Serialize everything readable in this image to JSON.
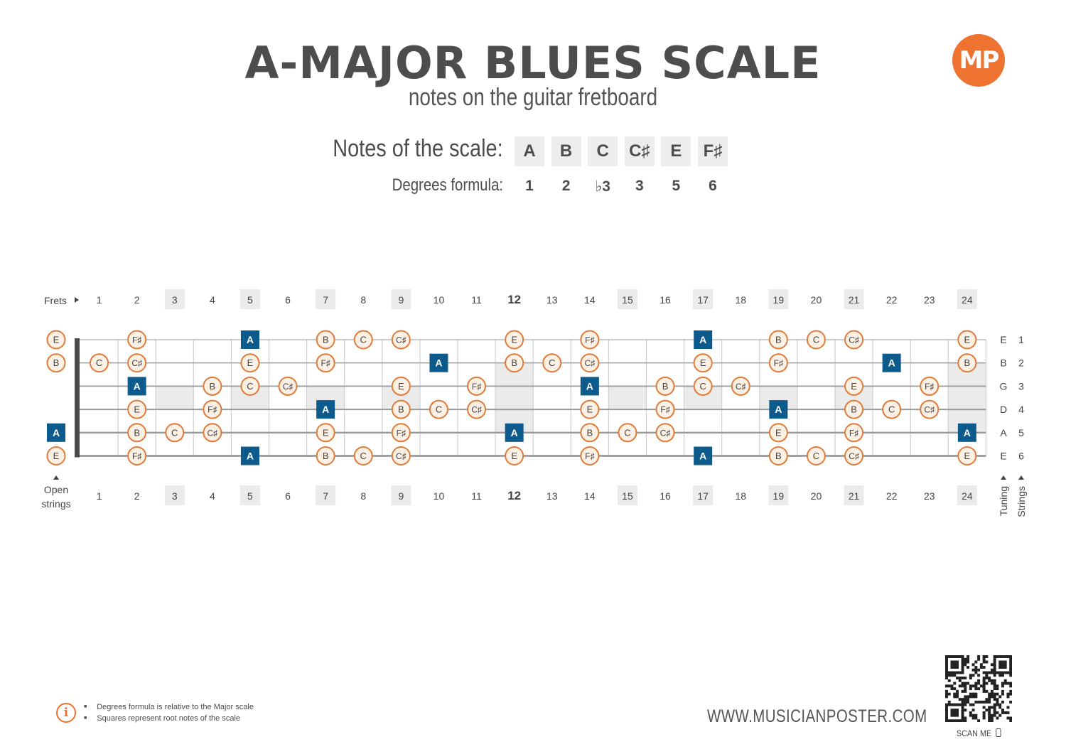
{
  "header": {
    "title": "A-MAJOR BLUES SCALE",
    "subtitle": "notes on the guitar fretboard",
    "logo_text": "MP"
  },
  "scale": {
    "notes_label": "Notes of the scale:",
    "degrees_label": "Degrees formula:",
    "notes": [
      "A",
      "B",
      "C",
      "C♯",
      "E",
      "F♯"
    ],
    "degrees": [
      "1",
      "2",
      "♭3",
      "3",
      "5",
      "6"
    ]
  },
  "fretboard": {
    "frets_label": "Frets",
    "open_strings_label": "Open strings",
    "tuning_label": "Tuning",
    "strings_label": "Strings",
    "fret_numbers": [
      "1",
      "2",
      "3",
      "4",
      "5",
      "6",
      "7",
      "8",
      "9",
      "10",
      "11",
      "12",
      "13",
      "14",
      "15",
      "16",
      "17",
      "18",
      "19",
      "20",
      "21",
      "22",
      "23",
      "24"
    ],
    "highlighted_frets": [
      3,
      5,
      7,
      9,
      15,
      17,
      19,
      21,
      24
    ],
    "bold_fret": 12,
    "inlay_frets": [
      3,
      5,
      7,
      9,
      12,
      15,
      17,
      19,
      21,
      24
    ],
    "tuning": [
      "E",
      "B",
      "G",
      "D",
      "A",
      "E"
    ],
    "string_numbers": [
      "1",
      "2",
      "3",
      "4",
      "5",
      "6"
    ],
    "root_note": "A",
    "rows": [
      {
        "string": 1,
        "notes": [
          [
            0,
            "E"
          ],
          [
            2,
            "F♯"
          ],
          [
            5,
            "A"
          ],
          [
            7,
            "B"
          ],
          [
            8,
            "C"
          ],
          [
            9,
            "C♯"
          ],
          [
            12,
            "E"
          ],
          [
            14,
            "F♯"
          ],
          [
            17,
            "A"
          ],
          [
            19,
            "B"
          ],
          [
            20,
            "C"
          ],
          [
            21,
            "C♯"
          ],
          [
            24,
            "E"
          ]
        ]
      },
      {
        "string": 2,
        "notes": [
          [
            0,
            "B"
          ],
          [
            1,
            "C"
          ],
          [
            2,
            "C♯"
          ],
          [
            5,
            "E"
          ],
          [
            7,
            "F♯"
          ],
          [
            10,
            "A"
          ],
          [
            12,
            "B"
          ],
          [
            13,
            "C"
          ],
          [
            14,
            "C♯"
          ],
          [
            17,
            "E"
          ],
          [
            19,
            "F♯"
          ],
          [
            22,
            "A"
          ],
          [
            24,
            "B"
          ]
        ]
      },
      {
        "string": 3,
        "notes": [
          [
            2,
            "A"
          ],
          [
            4,
            "B"
          ],
          [
            5,
            "C"
          ],
          [
            6,
            "C♯"
          ],
          [
            9,
            "E"
          ],
          [
            11,
            "F♯"
          ],
          [
            14,
            "A"
          ],
          [
            16,
            "B"
          ],
          [
            17,
            "C"
          ],
          [
            18,
            "C♯"
          ],
          [
            21,
            "E"
          ],
          [
            23,
            "F♯"
          ]
        ]
      },
      {
        "string": 4,
        "notes": [
          [
            2,
            "E"
          ],
          [
            4,
            "F♯"
          ],
          [
            7,
            "A"
          ],
          [
            9,
            "B"
          ],
          [
            10,
            "C"
          ],
          [
            11,
            "C♯"
          ],
          [
            14,
            "E"
          ],
          [
            16,
            "F♯"
          ],
          [
            19,
            "A"
          ],
          [
            21,
            "B"
          ],
          [
            22,
            "C"
          ],
          [
            23,
            "C♯"
          ]
        ]
      },
      {
        "string": 5,
        "notes": [
          [
            0,
            "A"
          ],
          [
            2,
            "B"
          ],
          [
            3,
            "C"
          ],
          [
            4,
            "C♯"
          ],
          [
            7,
            "E"
          ],
          [
            9,
            "F♯"
          ],
          [
            12,
            "A"
          ],
          [
            14,
            "B"
          ],
          [
            15,
            "C"
          ],
          [
            16,
            "C♯"
          ],
          [
            19,
            "E"
          ],
          [
            21,
            "F♯"
          ],
          [
            24,
            "A"
          ]
        ]
      },
      {
        "string": 6,
        "notes": [
          [
            0,
            "E"
          ],
          [
            2,
            "F♯"
          ],
          [
            5,
            "A"
          ],
          [
            7,
            "B"
          ],
          [
            8,
            "C"
          ],
          [
            9,
            "C♯"
          ],
          [
            12,
            "E"
          ],
          [
            14,
            "F♯"
          ],
          [
            17,
            "A"
          ],
          [
            19,
            "B"
          ],
          [
            20,
            "C"
          ],
          [
            21,
            "C♯"
          ],
          [
            24,
            "E"
          ]
        ]
      }
    ]
  },
  "footer": {
    "notes": [
      "Degrees formula is relative to the Major scale",
      "Squares represent root notes of the scale"
    ],
    "website": "WWW.MUSICIANPOSTER.COM",
    "scan_label": "SCAN ME"
  },
  "colors": {
    "accent_orange": "#e07b39",
    "note_fill": "#fdf1e6",
    "root_fill": "#0d5a8c",
    "inlay_gray": "#ebebeb",
    "fret_number_bg": "#ebebeb",
    "string_color": "#9a9a9a",
    "nut_color": "#4a4a4a"
  },
  "icons": [
    "info-icon",
    "qr-code-icon",
    "phone-icon",
    "play-triangle-icon"
  ]
}
